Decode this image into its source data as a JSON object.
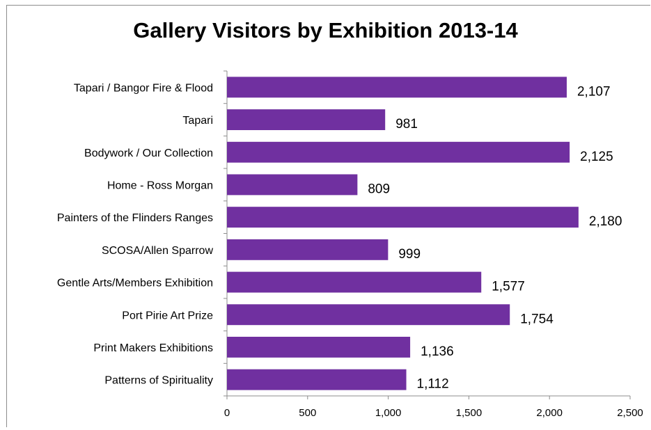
{
  "chart_data": {
    "type": "bar",
    "orientation": "horizontal",
    "title": "Gallery Visitors by Exhibition 2013-14",
    "xlabel": "",
    "ylabel": "",
    "categories": [
      "Tapari / Bangor Fire & Flood",
      "Tapari",
      "Bodywork / Our Collection",
      "Home - Ross Morgan",
      "Painters of the Flinders Ranges",
      "SCOSA/Allen Sparrow",
      "Gentle Arts/Members Exhibition",
      "Port Pirie Art Prize",
      "Print Makers Exhibitions",
      "Patterns of Spirituality"
    ],
    "values": [
      2107,
      981,
      2125,
      809,
      2180,
      999,
      1577,
      1754,
      1136,
      1112
    ],
    "value_labels": [
      "2,107",
      "981",
      "2,125",
      "809",
      "2,180",
      "999",
      "1,577",
      "1,754",
      "1,136",
      "1,112"
    ],
    "xlim": [
      0,
      2500
    ],
    "ticks": [
      0,
      500,
      1000,
      1500,
      2000,
      2500
    ],
    "tick_labels": [
      "0",
      "500",
      "1,000",
      "1,500",
      "2,000",
      "2,500"
    ],
    "bar_color": "#7030a0",
    "grid": false,
    "legend": false
  }
}
